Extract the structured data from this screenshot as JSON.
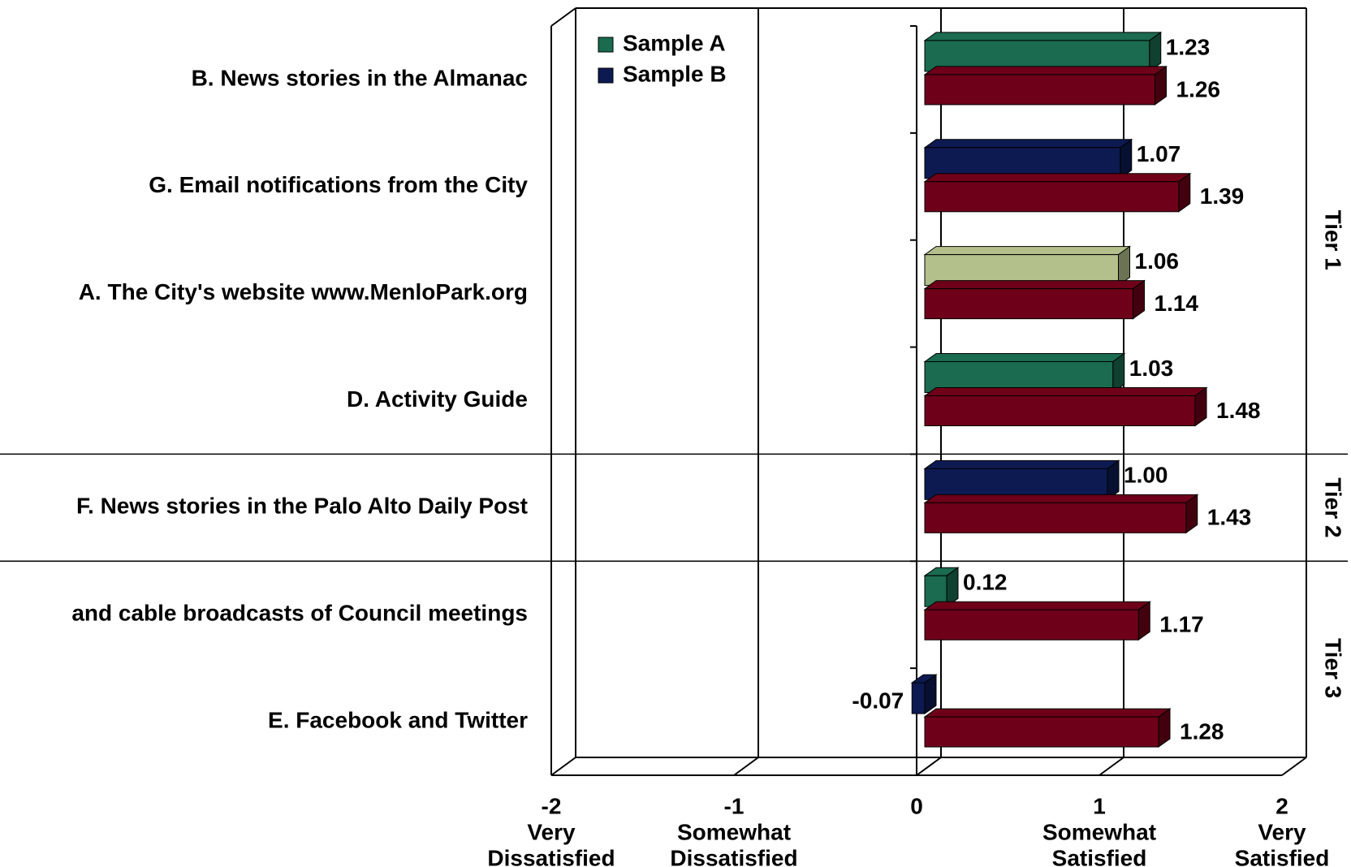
{
  "chart_data": {
    "type": "bar3d",
    "orientation": "horizontal",
    "categories": [
      "B. News stories in the Almanac",
      "G. Email notifications from the City",
      "A. The City's website www.MenloPark.org",
      "D. Activity Guide",
      "F. News stories in the Palo Alto Daily Post",
      "and cable broadcasts of Council meetings",
      "E. Facebook and Twitter"
    ],
    "series": [
      {
        "colors": [
          "#1a6b4f",
          "#0d1a52",
          "#b4c08c",
          "#1a6b4f",
          "#0d1a52",
          "#1a6b4f",
          "#0d1a52"
        ],
        "values": [
          1.23,
          1.07,
          1.06,
          1.03,
          1.0,
          0.12,
          -0.07
        ],
        "value_labels": [
          "1.23",
          "1.07",
          "1.06",
          "1.03",
          "1.00",
          "0.12",
          "-0.07"
        ]
      },
      {
        "color": "#6e0019",
        "values": [
          1.26,
          1.39,
          1.14,
          1.48,
          1.43,
          1.17,
          1.28
        ],
        "value_labels": [
          "1.26",
          "1.39",
          "1.14",
          "1.48",
          "1.43",
          "1.17",
          "1.28"
        ]
      }
    ],
    "legend": [
      {
        "name": "Sample A",
        "color": "#1a6b4f"
      },
      {
        "name": "Sample B",
        "color": "#0d1a52"
      }
    ],
    "xlim": [
      -2,
      2
    ],
    "xticks": [
      -2,
      -1,
      0,
      1,
      2
    ],
    "xtick_descriptions": [
      [
        "Very",
        "Dissatisfied"
      ],
      [
        "Somewhat",
        "Dissatisfied"
      ],
      null,
      [
        "Somewhat",
        "Satisfied"
      ],
      [
        "Very",
        "Satisfied"
      ]
    ],
    "tiers": [
      {
        "label": "Tier 1",
        "span": 4
      },
      {
        "label": "Tier 2",
        "span": 1
      },
      {
        "label": "Tier 3",
        "span": 2
      }
    ],
    "grid": true
  }
}
